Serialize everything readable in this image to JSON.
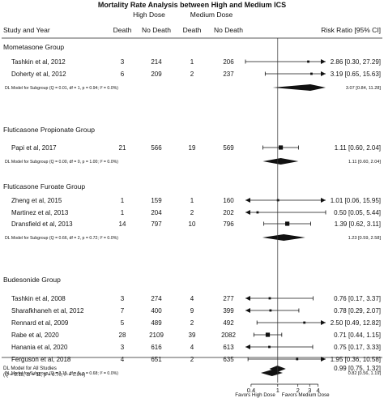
{
  "chart_data": {
    "type": "forest",
    "title": "Mortality Rate Analysis between High and Medium ICS",
    "columns": {
      "study": "Study and Year",
      "group_a": "High Dose",
      "group_b": "Medium Dose",
      "death": "Death",
      "no_death": "No Death",
      "ratio": "Risk Ratio [95% CI]"
    },
    "groups": [
      {
        "name": "Mometasone Group",
        "studies": [
          {
            "study": "Tashkin et al, 2012",
            "a_death": "3",
            "a_no": "214",
            "b_death": "1",
            "b_no": "206",
            "rr": 2.86,
            "lo": 0.3,
            "hi": 27.29,
            "label": "2.86 [0.30, 27.29]",
            "arrow_right": true
          },
          {
            "study": "Doherty et al, 2012",
            "a_death": "6",
            "a_no": "209",
            "b_death": "2",
            "b_no": "237",
            "rr": 3.19,
            "lo": 0.65,
            "hi": 15.63,
            "label": "3.19 [0.65, 15.63]",
            "arrow_right": true
          }
        ],
        "subtotal": {
          "label": "DL Model for Subgroup (Q = 0.01, df = 1, p = 0.94; I² = 0.0%)",
          "rr": 3.07,
          "lo": 0.84,
          "hi": 11.28,
          "ci_label": "3.07 [0.84, 11.28]"
        }
      },
      {
        "name": "Fluticasone Propionate Group",
        "studies": [
          {
            "study": "Papi et al, 2017",
            "a_death": "21",
            "a_no": "566",
            "b_death": "19",
            "b_no": "569",
            "rr": 1.11,
            "lo": 0.6,
            "hi": 2.04,
            "label": "1.11 [0.60,  2.04]"
          }
        ],
        "subtotal": {
          "label": "DL Model for Subgroup (Q = 0.00, df = 0, p = 1.00; I² = 0.0%)",
          "rr": 1.11,
          "lo": 0.6,
          "hi": 2.04,
          "ci_label": "1.11 [0.60, 2.04]"
        }
      },
      {
        "name": "Fluticasone Furoate Group",
        "studies": [
          {
            "study": "Zheng et al, 2015",
            "a_death": "1",
            "a_no": "159",
            "b_death": "1",
            "b_no": "160",
            "rr": 1.01,
            "lo": 0.06,
            "hi": 15.95,
            "label": "1.01 [0.06, 15.95]",
            "arrow_left": true,
            "arrow_right": true
          },
          {
            "study": "Martinez et al, 2013",
            "a_death": "1",
            "a_no": "204",
            "b_death": "2",
            "b_no": "202",
            "rr": 0.5,
            "lo": 0.05,
            "hi": 5.44,
            "label": "0.50 [0.05,  5.44]",
            "arrow_left": true
          },
          {
            "study": "Dransfield et al, 2013",
            "a_death": "14",
            "a_no": "797",
            "b_death": "10",
            "b_no": "796",
            "rr": 1.39,
            "lo": 0.62,
            "hi": 3.11,
            "label": "1.39 [0.62,  3.11]"
          }
        ],
        "subtotal": {
          "label": "DL Model for Subgroup (Q = 0.66, df = 2, p = 0.72; I² = 0.0%)",
          "rr": 1.23,
          "lo": 0.59,
          "hi": 2.58,
          "ci_label": "1.23 [0.59, 2.58]"
        }
      },
      {
        "name": "Budesonide Group",
        "studies": [
          {
            "study": "Tashkin et al, 2008",
            "a_death": "3",
            "a_no": "274",
            "b_death": "4",
            "b_no": "277",
            "rr": 0.76,
            "lo": 0.17,
            "hi": 3.37,
            "label": "0.76 [0.17,  3.37]",
            "arrow_left": true
          },
          {
            "study": "Sharafkhaneh et al, 2012",
            "a_death": "7",
            "a_no": "400",
            "b_death": "9",
            "b_no": "399",
            "rr": 0.78,
            "lo": 0.29,
            "hi": 2.07,
            "label": "0.78 [0.29,  2.07]",
            "arrow_left": true
          },
          {
            "study": "Rennard et al, 2009",
            "a_death": "5",
            "a_no": "489",
            "b_death": "2",
            "b_no": "492",
            "rr": 2.5,
            "lo": 0.49,
            "hi": 12.82,
            "label": "2.50 [0.49, 12.82]",
            "arrow_right": true
          },
          {
            "study": "Rabe et al, 2020",
            "a_death": "28",
            "a_no": "2109",
            "b_death": "39",
            "b_no": "2082",
            "rr": 0.71,
            "lo": 0.44,
            "hi": 1.15,
            "label": "0.71 [0.44,  1.15]"
          },
          {
            "study": "Hanania et al, 2020",
            "a_death": "3",
            "a_no": "616",
            "b_death": "4",
            "b_no": "613",
            "rr": 0.75,
            "lo": 0.17,
            "hi": 3.33,
            "label": "0.75 [0.17,  3.33]",
            "arrow_left": true
          },
          {
            "study": "Ferguson et al, 2018",
            "a_death": "4",
            "a_no": "651",
            "b_death": "2",
            "b_no": "635",
            "rr": 1.95,
            "lo": 0.36,
            "hi": 10.58,
            "label": "1.95 [0.36, 10.58]",
            "arrow_right": true
          }
        ],
        "subtotal": {
          "label": "DL Model for Subgroup (Q = 3.15, df = 5, p = 0.68; I² = 0.0%)",
          "rr": 0.82,
          "lo": 0.56,
          "hi": 1.19,
          "ci_label": "0.82 [0.56, 1.19]"
        }
      }
    ],
    "overall": {
      "label_line1": "DL   Model for All Studies",
      "label_line2": "(Q = 8.18, df = 11, p = 0.70; I² = 0.0%)",
      "rr": 0.99,
      "lo": 0.75,
      "hi": 1.32,
      "ci_label": "0.99 [0.75,  1.32]"
    },
    "x_axis": {
      "scale": "log",
      "range": [
        0.33,
        5.2
      ],
      "reference": 1,
      "ticks": [
        0.4,
        1,
        2,
        3,
        4
      ],
      "tick_labels": [
        "0.4",
        "1",
        "2",
        "3",
        "4"
      ],
      "left_label": "Favors High Dose",
      "right_label": "Favors Medium Dose"
    }
  }
}
